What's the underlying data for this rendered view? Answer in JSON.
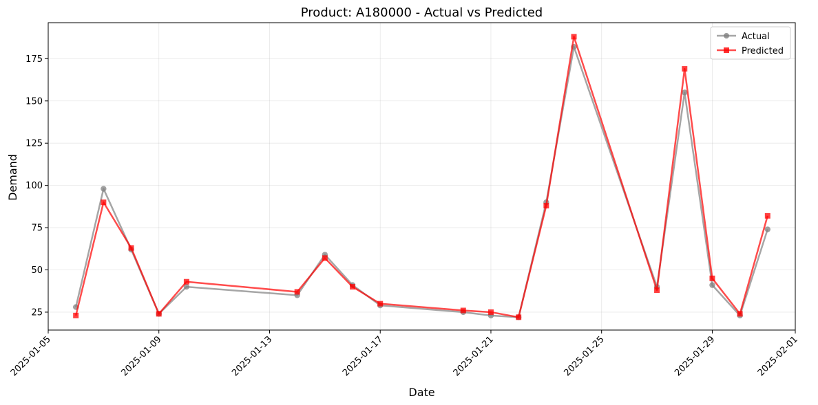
{
  "chart_data": {
    "type": "line",
    "title": "Product: A180000 - Actual vs Predicted",
    "xlabel": "Date",
    "ylabel": "Demand",
    "x": [
      "2025-01-06",
      "2025-01-07",
      "2025-01-08",
      "2025-01-09",
      "2025-01-10",
      "2025-01-14",
      "2025-01-15",
      "2025-01-16",
      "2025-01-17",
      "2025-01-20",
      "2025-01-21",
      "2025-01-22",
      "2025-01-23",
      "2025-01-24",
      "2025-01-27",
      "2025-01-28",
      "2025-01-29",
      "2025-01-30",
      "2025-01-31"
    ],
    "series": [
      {
        "name": "Actual",
        "color": "#808080",
        "marker": "circle",
        "values": [
          28,
          98,
          62,
          24,
          40,
          35,
          59,
          41,
          29,
          25,
          23,
          22,
          90,
          182,
          40,
          155,
          41,
          23,
          74
        ]
      },
      {
        "name": "Predicted",
        "color": "#ff0000",
        "marker": "square",
        "values": [
          23,
          90,
          63,
          24,
          43,
          37,
          57,
          40,
          30,
          26,
          25,
          22,
          88,
          188,
          38,
          169,
          45,
          24,
          82
        ]
      }
    ],
    "xlim": [
      "2025-01-05",
      "2025-02-01"
    ],
    "ylim": [
      14.4,
      196.3
    ],
    "xticks": [
      "2025-01-05",
      "2025-01-09",
      "2025-01-13",
      "2025-01-17",
      "2025-01-21",
      "2025-01-25",
      "2025-01-29",
      "2025-02-01"
    ],
    "yticks": [
      25,
      50,
      75,
      100,
      125,
      150,
      175
    ],
    "grid": true,
    "legend_position": "top-right"
  }
}
